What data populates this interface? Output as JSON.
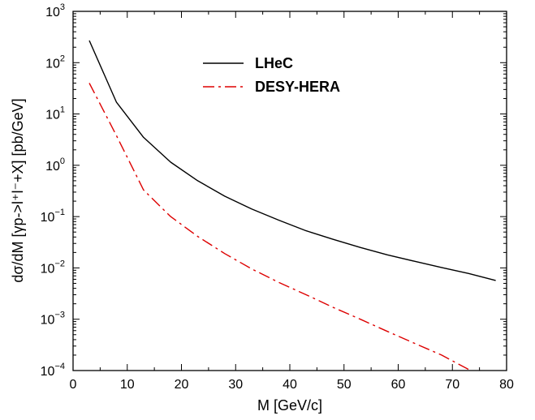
{
  "chart_data": {
    "type": "line",
    "xlabel": "M [GeV/c]",
    "ylabel": "dσ/dM [γp->l⁺l⁻+X] [pb/GeV]",
    "xlim": [
      0,
      80
    ],
    "ylim": [
      0.0001,
      1000
    ],
    "yscale": "log",
    "grid": false,
    "legend_position": "top-center",
    "x_ticks": [
      0,
      10,
      20,
      30,
      40,
      50,
      60,
      70,
      80
    ],
    "y_ticks": [
      {
        "value": 0.0001,
        "base": "10",
        "exp": "−4"
      },
      {
        "value": 0.001,
        "base": "10",
        "exp": "−3"
      },
      {
        "value": 0.01,
        "base": "10",
        "exp": "−2"
      },
      {
        "value": 0.1,
        "base": "10",
        "exp": "−1"
      },
      {
        "value": 1,
        "base": "10",
        "exp": "0"
      },
      {
        "value": 10,
        "base": "10",
        "exp": "1"
      },
      {
        "value": 100,
        "base": "10",
        "exp": "2"
      },
      {
        "value": 1000,
        "base": "10",
        "exp": "3"
      }
    ],
    "series": [
      {
        "name": "LHeC",
        "color": "#000000",
        "dash": "solid",
        "x": [
          3,
          8,
          13,
          18,
          23,
          28,
          33,
          38,
          43,
          48,
          53,
          58,
          63,
          68,
          73,
          78
        ],
        "y": [
          270,
          17,
          3.5,
          1.15,
          0.5,
          0.25,
          0.14,
          0.085,
          0.053,
          0.036,
          0.025,
          0.018,
          0.0135,
          0.0102,
          0.0078,
          0.0057
        ]
      },
      {
        "name": "DESY-HERA",
        "color": "#dd0000",
        "dash": "dashdot",
        "x": [
          3,
          8,
          13,
          18,
          23,
          28,
          33,
          38,
          43,
          48,
          53,
          58,
          63,
          68,
          73,
          78
        ],
        "y": [
          40,
          3.8,
          0.33,
          0.1,
          0.041,
          0.019,
          0.0095,
          0.0052,
          0.003,
          0.0017,
          0.001,
          0.00058,
          0.00034,
          0.0002,
          0.000105,
          5.5e-05
        ]
      }
    ]
  }
}
